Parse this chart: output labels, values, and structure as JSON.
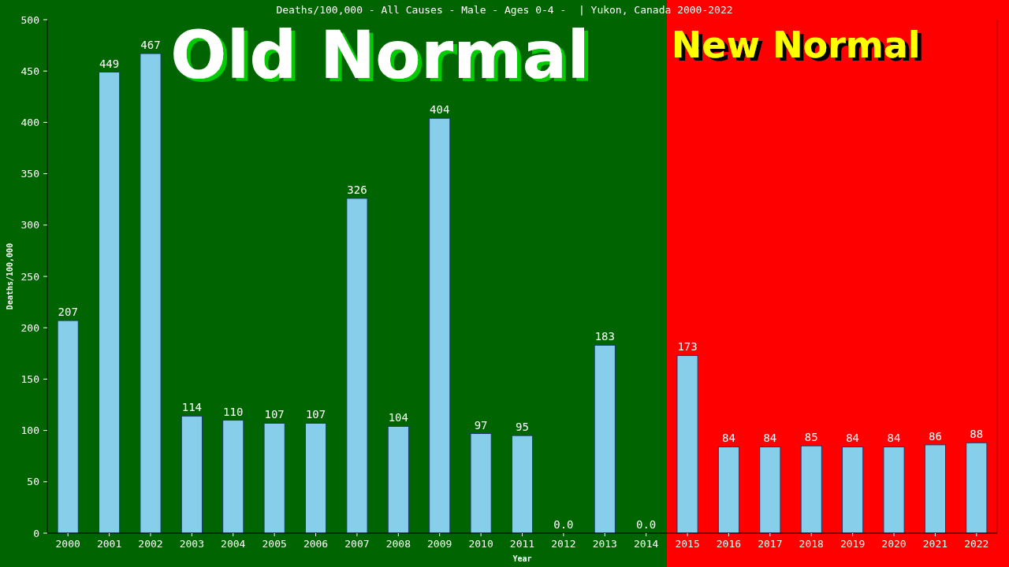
{
  "chart_data": {
    "type": "bar",
    "title": "Deaths/100,000 - All Causes - Male - Ages 0-4 -  | Yukon, Canada 2000-2022",
    "xlabel": "Year",
    "ylabel": "Deaths/100,000",
    "categories": [
      "2000",
      "2001",
      "2002",
      "2003",
      "2004",
      "2005",
      "2006",
      "2007",
      "2008",
      "2009",
      "2010",
      "2011",
      "2012",
      "2013",
      "2014",
      "2015",
      "2016",
      "2017",
      "2018",
      "2019",
      "2020",
      "2021",
      "2022"
    ],
    "values": [
      207,
      449,
      467,
      114,
      110,
      107,
      107,
      326,
      104,
      404,
      97,
      95,
      0,
      183,
      0,
      173,
      84,
      84,
      85,
      84,
      84,
      86,
      88
    ],
    "value_labels": [
      "207",
      "449",
      "467",
      "114",
      "110",
      "107",
      "107",
      "326",
      "104",
      "404",
      "97",
      "95",
      "0.0",
      "183",
      "0.0",
      "173",
      "84",
      "84",
      "85",
      "84",
      "84",
      "86",
      "88"
    ],
    "color": "#87ceeb",
    "ylim": [
      0,
      500
    ],
    "yticks": [
      0,
      50,
      100,
      150,
      200,
      250,
      300,
      350,
      400,
      450,
      500
    ],
    "bands": [
      {
        "axis": "x",
        "from": "2000",
        "to": "2014",
        "label": "Old Normal",
        "color": "#006400"
      },
      {
        "axis": "x",
        "from": "2015",
        "to": "2022",
        "label": "New Normal",
        "color": "#ff0000"
      }
    ]
  }
}
